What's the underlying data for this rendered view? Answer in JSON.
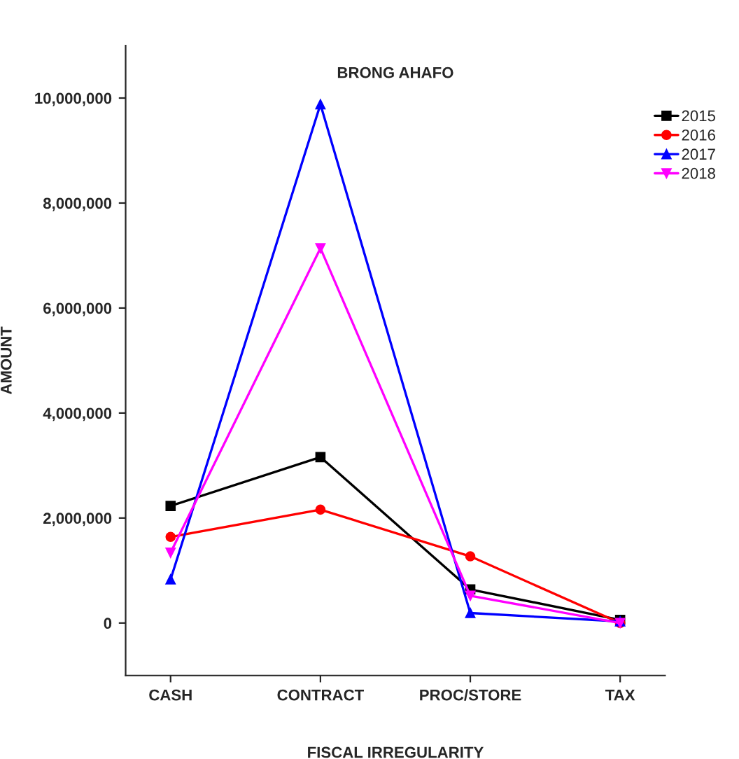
{
  "chart_data": {
    "type": "line",
    "title": "BRONG AHAFO",
    "xlabel": "FISCAL IRREGULARITY",
    "ylabel": "AMOUNT",
    "categories": [
      "CASH",
      "CONTRACT",
      "PROC/STORE",
      "TAX"
    ],
    "series": [
      {
        "name": "2015",
        "color": "#000000",
        "marker": "square",
        "values": [
          2230000,
          3160000,
          640000,
          60000
        ]
      },
      {
        "name": "2016",
        "color": "#ff0000",
        "marker": "circle",
        "values": [
          1640000,
          2160000,
          1270000,
          0
        ]
      },
      {
        "name": "2017",
        "color": "#0000ff",
        "marker": "triangle",
        "values": [
          830000,
          9880000,
          190000,
          30000
        ]
      },
      {
        "name": "2018",
        "color": "#ff00ff",
        "marker": "triangle_down",
        "values": [
          1340000,
          7140000,
          520000,
          0
        ]
      }
    ],
    "ylim": [
      -1000000,
      11000000
    ],
    "yticks": [
      {
        "value": 0,
        "label": "0"
      },
      {
        "value": 2000000,
        "label": "2,000,000"
      },
      {
        "value": 4000000,
        "label": "4,000,000"
      },
      {
        "value": 6000000,
        "label": "6,000,000"
      },
      {
        "value": 8000000,
        "label": "8,000,000"
      },
      {
        "value": 10000000,
        "label": "10,000,000"
      }
    ],
    "grid": false,
    "legend": "top right",
    "line_style": "solid"
  }
}
